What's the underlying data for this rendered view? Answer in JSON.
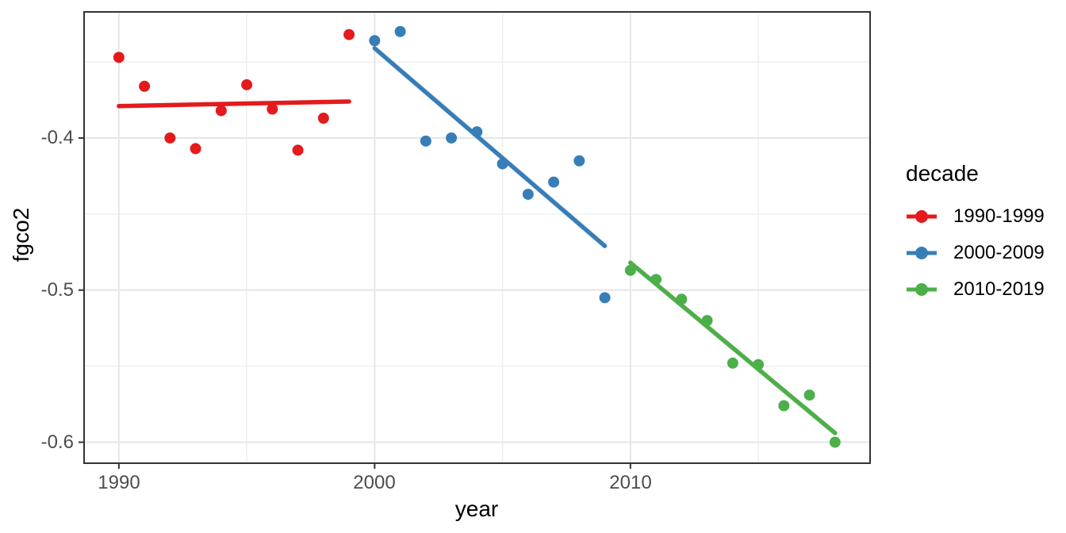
{
  "figure": {
    "background": "#ffffff",
    "panel_border_color": "#333333",
    "grid_major_color": "#e6e6e6",
    "grid_minor_color": "#f0f0f0",
    "tick_color": "#333333",
    "tick_label_color": "#4d4d4d"
  },
  "chart_data": {
    "type": "scatter",
    "title": "",
    "xlabel": "year",
    "ylabel": "fgco2",
    "xlim": [
      1988.64,
      2019.37
    ],
    "ylim": [
      -0.6138,
      -0.3171
    ],
    "grid": true,
    "x_ticks": {
      "major": [
        1990,
        2000,
        2010
      ],
      "minor": [
        1995,
        2005,
        2015
      ],
      "labels": [
        "1990",
        "2000",
        "2010"
      ]
    },
    "y_ticks": {
      "major": [
        -0.4,
        -0.5,
        -0.6
      ],
      "minor": [
        -0.35,
        -0.45,
        -0.55
      ],
      "labels": [
        "-0.4",
        "-0.5",
        "-0.6"
      ]
    },
    "legend": {
      "title": "decade",
      "position": "right",
      "entries": [
        {
          "label": "1990-1999",
          "color": "#e41a1c"
        },
        {
          "label": "2000-2009",
          "color": "#377eb8"
        },
        {
          "label": "2010-2019",
          "color": "#4daf4a"
        }
      ]
    },
    "series": [
      {
        "name": "1990-1999",
        "color": "#e41a1c",
        "x": [
          1990,
          1991,
          1992,
          1993,
          1994,
          1995,
          1996,
          1997,
          1998,
          1999
        ],
        "y": [
          -0.347,
          -0.366,
          -0.4,
          -0.407,
          -0.382,
          -0.365,
          -0.381,
          -0.408,
          -0.387,
          -0.332
        ],
        "trend": {
          "x": [
            1990,
            1999
          ],
          "y": [
            -0.379,
            -0.376
          ]
        }
      },
      {
        "name": "2000-2009",
        "color": "#377eb8",
        "x": [
          2000,
          2001,
          2002,
          2003,
          2004,
          2005,
          2006,
          2007,
          2008,
          2009
        ],
        "y": [
          -0.336,
          -0.33,
          -0.402,
          -0.4,
          -0.396,
          -0.417,
          -0.437,
          -0.429,
          -0.415,
          -0.505
        ],
        "trend": {
          "x": [
            2000,
            2009
          ],
          "y": [
            -0.341,
            -0.471
          ]
        }
      },
      {
        "name": "2010-2019",
        "color": "#4daf4a",
        "x": [
          2010,
          2011,
          2012,
          2013,
          2014,
          2015,
          2016,
          2017,
          2018
        ],
        "y": [
          -0.487,
          -0.493,
          -0.506,
          -0.52,
          -0.548,
          -0.549,
          -0.576,
          -0.569,
          -0.6
        ],
        "trend": {
          "x": [
            2010,
            2018
          ],
          "y": [
            -0.482,
            -0.594
          ]
        }
      }
    ]
  }
}
